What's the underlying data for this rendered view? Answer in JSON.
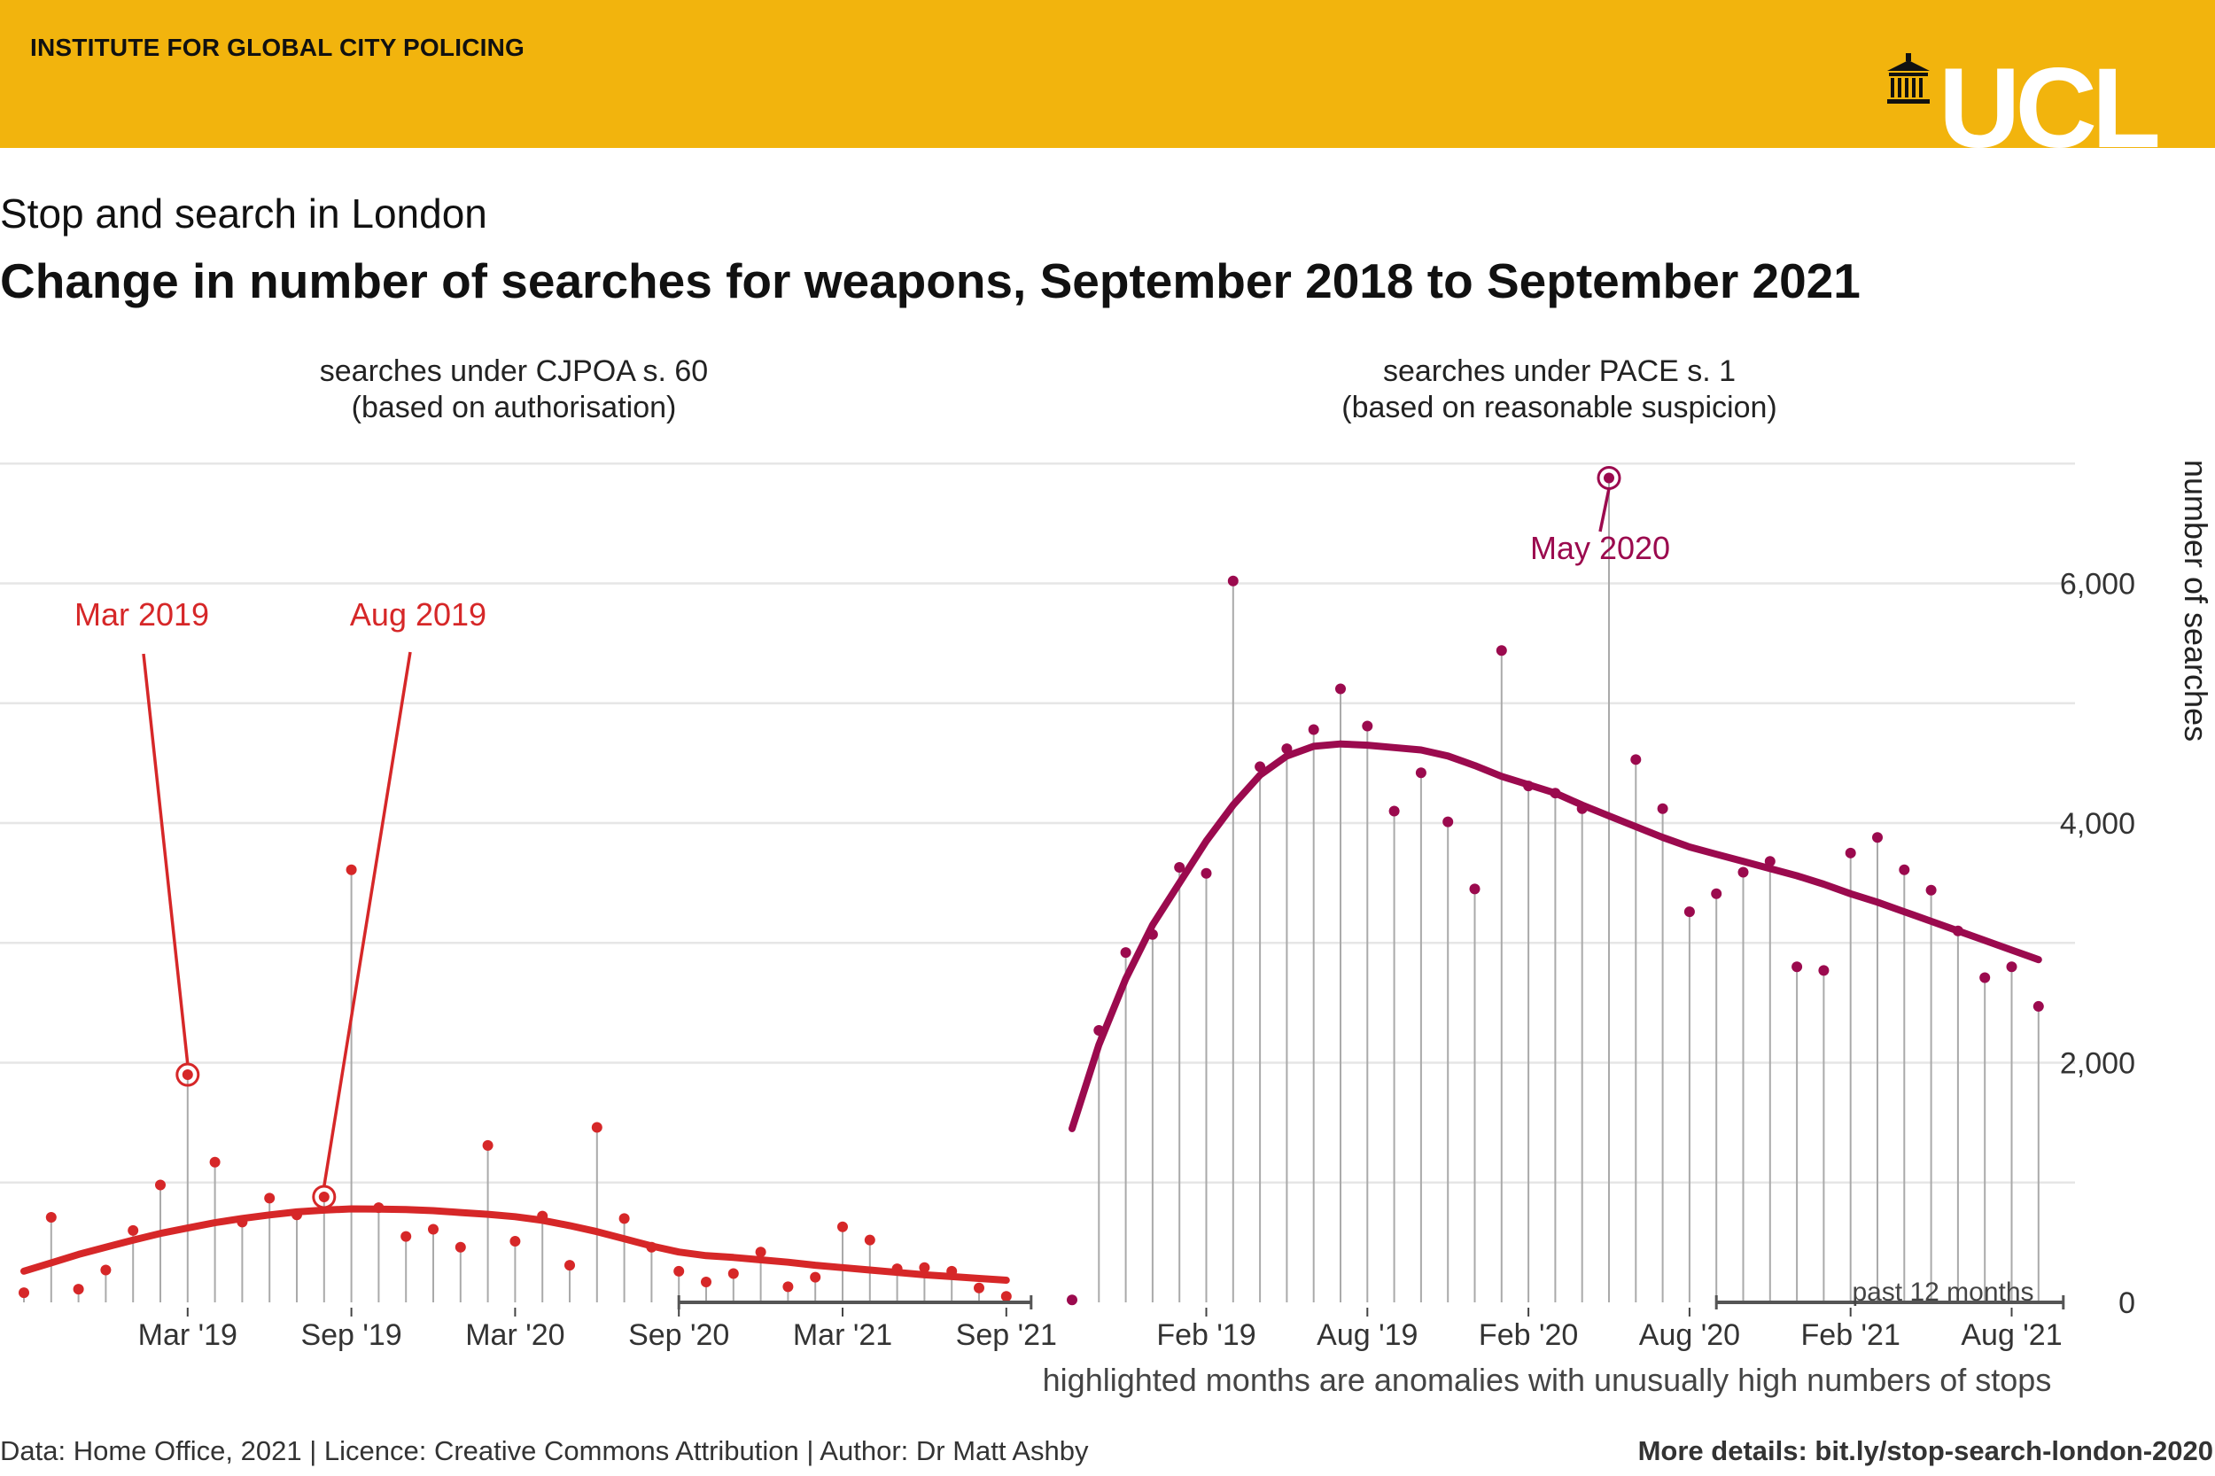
{
  "header": {
    "institute": "INSTITUTE FOR GLOBAL CITY POLICING",
    "logo_text": "UCL"
  },
  "subtitle": "Stop and search in London",
  "title": "Change in number of searches for weapons, September 2018 to September 2021",
  "colors": {
    "banner": "#f2b40d",
    "s60": "#d62728",
    "pace": "#9b0a4e",
    "stem": "#aaaaaa",
    "grid": "#e6e6e6"
  },
  "footer": {
    "left": "Data: Home Office, 2021 | Licence: Creative Commons Attribution | Author: Dr Matt Ashby",
    "right": "More details: bit.ly/stop-search-london-2020"
  },
  "shared": {
    "yaxis_label": "number of searches",
    "y_ticks": [
      0,
      2000,
      4000,
      6000
    ],
    "y_tick_labels": [
      "0",
      "2,000",
      "4,000",
      "6,000"
    ],
    "x_caption": "highlighted months are anomalies with unusually high numbers of stops",
    "past_label": "past 12 months"
  },
  "chart_data": [
    {
      "type": "line",
      "title": "searches under CJPOA s. 60\n(based on authorisation)",
      "title_lines": [
        "searches under CJPOA s. 60",
        "(based on authorisation)"
      ],
      "x_start": "2018-09",
      "x": [
        "2018-09",
        "2018-10",
        "2018-11",
        "2018-12",
        "2019-01",
        "2019-02",
        "2019-03",
        "2019-04",
        "2019-05",
        "2019-06",
        "2019-07",
        "2019-08",
        "2019-09",
        "2019-10",
        "2019-11",
        "2019-12",
        "2020-01",
        "2020-02",
        "2020-03",
        "2020-04",
        "2020-05",
        "2020-06",
        "2020-07",
        "2020-08",
        "2020-09",
        "2020-10",
        "2020-11",
        "2020-12",
        "2021-01",
        "2021-02",
        "2021-03",
        "2021-04",
        "2021-05",
        "2021-06",
        "2021-07",
        "2021-08",
        "2021-09"
      ],
      "values": [
        80,
        710,
        110,
        270,
        600,
        980,
        1900,
        1170,
        670,
        870,
        730,
        880,
        3610,
        790,
        550,
        610,
        460,
        1310,
        510,
        720,
        310,
        1460,
        700,
        460,
        260,
        170,
        240,
        420,
        130,
        210,
        630,
        520,
        280,
        290,
        260,
        120,
        50
      ],
      "trend": [
        260,
        330,
        400,
        460,
        520,
        575,
        620,
        665,
        700,
        730,
        755,
        770,
        780,
        778,
        775,
        765,
        750,
        735,
        715,
        685,
        640,
        590,
        530,
        470,
        420,
        390,
        375,
        355,
        335,
        310,
        290,
        270,
        250,
        230,
        215,
        200,
        185
      ],
      "anomalies": [
        {
          "x": "2019-03",
          "label": "Mar 2019"
        },
        {
          "x": "2019-08",
          "label": "Aug 2019"
        }
      ],
      "x_tick_labels": [
        "Mar '19",
        "Sep '19",
        "Mar '20",
        "Sep '20",
        "Mar '21",
        "Sep '21"
      ],
      "x_tick_months": [
        "2019-03",
        "2019-09",
        "2020-03",
        "2020-09",
        "2021-03",
        "2021-09"
      ],
      "ylim": [
        0,
        7000
      ],
      "grid": true
    },
    {
      "type": "line",
      "title": "searches under PACE s. 1\n(based on reasonable suspicion)",
      "title_lines": [
        "searches under PACE s. 1",
        "(based on reasonable suspicion)"
      ],
      "x_start": "2018-09",
      "x": [
        "2018-09",
        "2018-10",
        "2018-11",
        "2018-12",
        "2019-01",
        "2019-02",
        "2019-03",
        "2019-04",
        "2019-05",
        "2019-06",
        "2019-07",
        "2019-08",
        "2019-09",
        "2019-10",
        "2019-11",
        "2019-12",
        "2020-01",
        "2020-02",
        "2020-03",
        "2020-04",
        "2020-05",
        "2020-06",
        "2020-07",
        "2020-08",
        "2020-09",
        "2020-10",
        "2020-11",
        "2020-12",
        "2021-01",
        "2021-02",
        "2021-03",
        "2021-04",
        "2021-05",
        "2021-06",
        "2021-07",
        "2021-08",
        "2021-09"
      ],
      "values": [
        20,
        2270,
        2920,
        3070,
        3630,
        3580,
        6020,
        4470,
        4620,
        4780,
        5120,
        4810,
        4100,
        4420,
        4010,
        3450,
        5440,
        4310,
        4250,
        4120,
        6880,
        4530,
        4120,
        3260,
        3410,
        3590,
        3680,
        2800,
        2770,
        3750,
        3880,
        3610,
        3440,
        3100,
        2710,
        2800,
        2470
      ],
      "trend": [
        1450,
        2150,
        2700,
        3150,
        3500,
        3850,
        4150,
        4400,
        4560,
        4640,
        4660,
        4650,
        4630,
        4610,
        4560,
        4480,
        4390,
        4320,
        4250,
        4150,
        4060,
        3970,
        3880,
        3800,
        3740,
        3680,
        3620,
        3560,
        3490,
        3410,
        3340,
        3260,
        3180,
        3100,
        3020,
        2940,
        2860
      ],
      "anomalies": [
        {
          "x": "2020-05",
          "label": "May 2020"
        }
      ],
      "x_tick_labels": [
        "Feb '19",
        "Aug '19",
        "Feb '20",
        "Aug '20",
        "Feb '21",
        "Aug '21"
      ],
      "x_tick_months": [
        "2019-02",
        "2019-08",
        "2020-02",
        "2020-08",
        "2021-02",
        "2021-08"
      ],
      "ylim": [
        0,
        7000
      ],
      "grid": true
    }
  ]
}
